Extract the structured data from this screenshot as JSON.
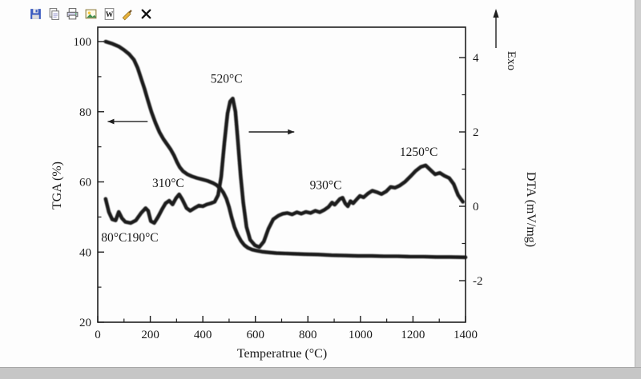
{
  "toolbar": {
    "icons": [
      {
        "name": "save-icon"
      },
      {
        "name": "copy-icon"
      },
      {
        "name": "print-icon"
      },
      {
        "name": "image-icon"
      },
      {
        "name": "word-doc-icon"
      },
      {
        "name": "format-brush-icon"
      },
      {
        "name": "close-icon"
      }
    ]
  },
  "chart_data": {
    "type": "line",
    "title": "",
    "xlabel": "Temperatrue (°C)",
    "ylabel_left": "TGA (%)",
    "ylabel_right": "DTA (mV/mg)",
    "exo_label": "Exo",
    "grid": false,
    "legend": "none",
    "xlim": [
      0,
      1400
    ],
    "ylim_left": [
      20,
      104
    ],
    "ylim_right": [
      -3.1,
      4.8
    ],
    "x_ticks": [
      0,
      200,
      400,
      600,
      800,
      1000,
      1200,
      1400
    ],
    "y_left_ticks": [
      20,
      40,
      60,
      80,
      100
    ],
    "y_right_ticks": [
      -2,
      0,
      2,
      4
    ],
    "series": [
      {
        "name": "TGA",
        "axis": "left",
        "points": [
          [
            30,
            100
          ],
          [
            55,
            99.4
          ],
          [
            80,
            98.6
          ],
          [
            100,
            97.6
          ],
          [
            120,
            96.4
          ],
          [
            138,
            94.8
          ],
          [
            152,
            92.5
          ],
          [
            165,
            89.5
          ],
          [
            178,
            86.5
          ],
          [
            192,
            83
          ],
          [
            205,
            79.8
          ],
          [
            220,
            76.8
          ],
          [
            235,
            74.2
          ],
          [
            250,
            72.2
          ],
          [
            265,
            70.6
          ],
          [
            278,
            69.2
          ],
          [
            290,
            67.6
          ],
          [
            302,
            65.6
          ],
          [
            312,
            64.2
          ],
          [
            325,
            63
          ],
          [
            340,
            62.2
          ],
          [
            358,
            61.6
          ],
          [
            378,
            61.1
          ],
          [
            398,
            60.7
          ],
          [
            418,
            60.3
          ],
          [
            438,
            59.7
          ],
          [
            452,
            59.1
          ],
          [
            466,
            58.2
          ],
          [
            478,
            57
          ],
          [
            490,
            55.2
          ],
          [
            500,
            52.8
          ],
          [
            510,
            49.8
          ],
          [
            520,
            47.2
          ],
          [
            532,
            45
          ],
          [
            545,
            43.2
          ],
          [
            558,
            42
          ],
          [
            572,
            41.2
          ],
          [
            588,
            40.7
          ],
          [
            605,
            40.4
          ],
          [
            625,
            40.1
          ],
          [
            650,
            39.9
          ],
          [
            680,
            39.7
          ],
          [
            715,
            39.6
          ],
          [
            750,
            39.5
          ],
          [
            790,
            39.4
          ],
          [
            840,
            39.3
          ],
          [
            890,
            39.1
          ],
          [
            940,
            39
          ],
          [
            990,
            38.9
          ],
          [
            1040,
            38.9
          ],
          [
            1090,
            38.8
          ],
          [
            1140,
            38.8
          ],
          [
            1190,
            38.7
          ],
          [
            1240,
            38.7
          ],
          [
            1290,
            38.6
          ],
          [
            1340,
            38.6
          ],
          [
            1400,
            38.5
          ]
        ]
      },
      {
        "name": "DTA",
        "axis": "right",
        "points": [
          [
            30,
            0.2
          ],
          [
            42,
            -0.15
          ],
          [
            55,
            -0.35
          ],
          [
            68,
            -0.38
          ],
          [
            80,
            -0.15
          ],
          [
            92,
            -0.32
          ],
          [
            105,
            -0.42
          ],
          [
            125,
            -0.45
          ],
          [
            145,
            -0.38
          ],
          [
            165,
            -0.18
          ],
          [
            182,
            -0.05
          ],
          [
            192,
            -0.12
          ],
          [
            202,
            -0.4
          ],
          [
            215,
            -0.45
          ],
          [
            230,
            -0.28
          ],
          [
            245,
            -0.08
          ],
          [
            258,
            0.08
          ],
          [
            272,
            0.15
          ],
          [
            285,
            0.05
          ],
          [
            298,
            0.22
          ],
          [
            310,
            0.32
          ],
          [
            322,
            0.18
          ],
          [
            338,
            -0.05
          ],
          [
            352,
            -0.12
          ],
          [
            368,
            -0.05
          ],
          [
            385,
            0.02
          ],
          [
            400,
            0
          ],
          [
            415,
            0.05
          ],
          [
            430,
            0.08
          ],
          [
            445,
            0.12
          ],
          [
            458,
            0.3
          ],
          [
            470,
            0.8
          ],
          [
            482,
            1.7
          ],
          [
            494,
            2.5
          ],
          [
            504,
            2.82
          ],
          [
            514,
            2.9
          ],
          [
            524,
            2.55
          ],
          [
            534,
            1.7
          ],
          [
            544,
            0.8
          ],
          [
            554,
            0.1
          ],
          [
            566,
            -0.55
          ],
          [
            580,
            -0.9
          ],
          [
            598,
            -1.05
          ],
          [
            615,
            -1.1
          ],
          [
            632,
            -0.95
          ],
          [
            650,
            -0.6
          ],
          [
            668,
            -0.35
          ],
          [
            688,
            -0.25
          ],
          [
            705,
            -0.2
          ],
          [
            722,
            -0.18
          ],
          [
            740,
            -0.22
          ],
          [
            758,
            -0.16
          ],
          [
            775,
            -0.2
          ],
          [
            792,
            -0.15
          ],
          [
            810,
            -0.18
          ],
          [
            828,
            -0.12
          ],
          [
            845,
            -0.16
          ],
          [
            862,
            -0.1
          ],
          [
            878,
            -0.02
          ],
          [
            892,
            0.1
          ],
          [
            902,
            0.04
          ],
          [
            912,
            0.12
          ],
          [
            922,
            0.2
          ],
          [
            932,
            0.23
          ],
          [
            942,
            0.08
          ],
          [
            952,
            0
          ],
          [
            962,
            0.14
          ],
          [
            972,
            0.08
          ],
          [
            985,
            0.18
          ],
          [
            998,
            0.28
          ],
          [
            1012,
            0.24
          ],
          [
            1028,
            0.34
          ],
          [
            1045,
            0.42
          ],
          [
            1062,
            0.38
          ],
          [
            1080,
            0.33
          ],
          [
            1098,
            0.4
          ],
          [
            1115,
            0.52
          ],
          [
            1132,
            0.5
          ],
          [
            1150,
            0.56
          ],
          [
            1170,
            0.66
          ],
          [
            1190,
            0.8
          ],
          [
            1210,
            0.95
          ],
          [
            1230,
            1.06
          ],
          [
            1248,
            1.1
          ],
          [
            1266,
            0.98
          ],
          [
            1284,
            0.86
          ],
          [
            1302,
            0.9
          ],
          [
            1320,
            0.82
          ],
          [
            1338,
            0.76
          ],
          [
            1355,
            0.6
          ],
          [
            1372,
            0.3
          ],
          [
            1390,
            0.12
          ]
        ]
      }
    ],
    "annotations": [
      {
        "text": "80°C",
        "x": 62,
        "y": -0.95,
        "axis": "right"
      },
      {
        "text": "190°C",
        "x": 170,
        "y": -0.95,
        "axis": "right"
      },
      {
        "text": "310°C",
        "x": 268,
        "y": 0.52,
        "axis": "right"
      },
      {
        "text": "520°C",
        "x": 490,
        "y": 3.32,
        "axis": "right"
      },
      {
        "text": "930°C",
        "x": 868,
        "y": 0.46,
        "axis": "right"
      },
      {
        "text": "1250°C",
        "x": 1222,
        "y": 1.36,
        "axis": "right"
      }
    ],
    "arrows": [
      {
        "name": "tga-axis-arrow",
        "axis": "right",
        "y": 2.28,
        "tail_x": 190,
        "head_x": 38,
        "dir": "left"
      },
      {
        "name": "dta-axis-arrow",
        "axis": "right",
        "y": 2.0,
        "tail_x": 575,
        "head_x": 748,
        "dir": "right"
      }
    ]
  }
}
